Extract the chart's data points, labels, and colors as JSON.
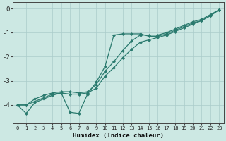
{
  "xlabel": "Humidex (Indice chaleur)",
  "bg_color": "#cce8e3",
  "grid_color": "#aaccca",
  "line_color": "#2a7a6e",
  "xlim": [
    -0.5,
    23.5
  ],
  "ylim": [
    -4.75,
    0.25
  ],
  "xticks": [
    0,
    1,
    2,
    3,
    4,
    5,
    6,
    7,
    8,
    9,
    10,
    11,
    12,
    13,
    14,
    15,
    16,
    17,
    18,
    19,
    20,
    21,
    22,
    23
  ],
  "yticks": [
    0,
    -1,
    -2,
    -3,
    -4
  ],
  "line1_x": [
    0,
    1,
    2,
    3,
    4,
    5,
    6,
    7,
    8,
    9,
    10,
    11,
    12,
    13,
    14,
    15,
    16,
    17,
    18,
    19,
    20,
    21,
    22,
    23
  ],
  "line1_y": [
    -4.0,
    -4.0,
    -3.85,
    -3.7,
    -3.55,
    -3.5,
    -3.55,
    -3.55,
    -3.5,
    -3.3,
    -2.8,
    -2.45,
    -2.05,
    -1.7,
    -1.4,
    -1.3,
    -1.2,
    -1.1,
    -0.95,
    -0.8,
    -0.65,
    -0.5,
    -0.3,
    -0.05
  ],
  "line2_x": [
    0,
    1,
    2,
    3,
    4,
    5,
    6,
    7,
    8,
    9,
    10,
    11,
    12,
    13,
    14,
    15,
    16,
    17,
    18,
    19,
    20,
    21,
    22,
    23
  ],
  "line2_y": [
    -4.0,
    -4.0,
    -3.75,
    -3.6,
    -3.5,
    -3.45,
    -3.45,
    -3.5,
    -3.45,
    -3.15,
    -2.6,
    -2.2,
    -1.75,
    -1.35,
    -1.1,
    -1.1,
    -1.1,
    -1.0,
    -0.85,
    -0.7,
    -0.55,
    -0.45,
    -0.25,
    -0.05
  ],
  "line3_x": [
    0,
    1,
    2,
    3,
    4,
    5,
    6,
    7,
    8,
    9,
    10,
    11,
    12,
    13,
    14,
    15,
    16,
    17,
    18,
    19,
    20,
    21,
    22,
    23
  ],
  "line3_y": [
    -4.0,
    -4.35,
    -3.9,
    -3.75,
    -3.6,
    -3.5,
    -4.3,
    -4.35,
    -3.55,
    -3.05,
    -2.4,
    -1.1,
    -1.05,
    -1.05,
    -1.05,
    -1.15,
    -1.15,
    -1.05,
    -0.9,
    -0.75,
    -0.6,
    -0.5,
    -0.3,
    -0.05
  ]
}
